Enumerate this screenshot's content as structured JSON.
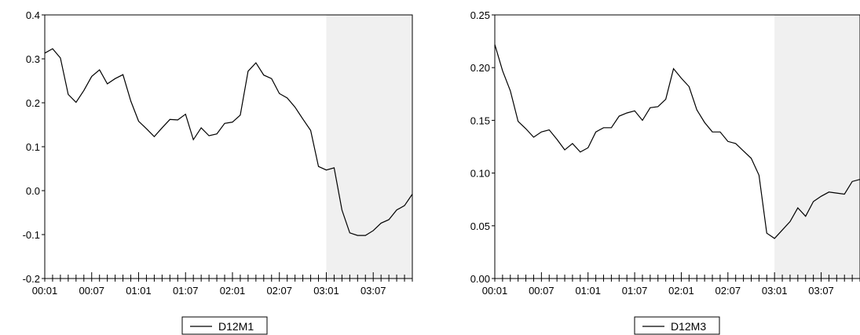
{
  "chart_data": [
    {
      "type": "line",
      "title": "",
      "xlabel": "",
      "ylabel": "",
      "ylim": [
        -0.2,
        0.4
      ],
      "yticks": [
        "-0.2",
        "-0.1",
        "0.0",
        "0.1",
        "0.2",
        "0.3",
        "0.4"
      ],
      "xtick_labels": [
        "00:01",
        "00:07",
        "01:01",
        "01:07",
        "02:01",
        "02:07",
        "03:01",
        "03:07"
      ],
      "shaded_region": {
        "from_index": 36,
        "to_index": 47,
        "color": "#f0f0f0"
      },
      "legend": {
        "position": "bottom-center"
      },
      "series": [
        {
          "name": "D12M1",
          "color": "#000000",
          "values": [
            0.313,
            0.323,
            0.302,
            0.219,
            0.201,
            0.228,
            0.26,
            0.275,
            0.243,
            0.255,
            0.264,
            0.204,
            0.158,
            0.141,
            0.123,
            0.143,
            0.162,
            0.161,
            0.174,
            0.116,
            0.143,
            0.125,
            0.129,
            0.153,
            0.156,
            0.172,
            0.272,
            0.291,
            0.263,
            0.255,
            0.221,
            0.211,
            0.19,
            0.163,
            0.137,
            0.055,
            0.047,
            0.052,
            -0.044,
            -0.096,
            -0.102,
            -0.102,
            -0.091,
            -0.074,
            -0.066,
            -0.044,
            -0.034,
            -0.008
          ]
        }
      ]
    },
    {
      "type": "line",
      "title": "",
      "xlabel": "",
      "ylabel": "",
      "ylim": [
        0.0,
        0.25
      ],
      "yticks": [
        "0.00",
        "0.05",
        "0.10",
        "0.15",
        "0.20",
        "0.25"
      ],
      "xtick_labels": [
        "00:01",
        "00:07",
        "01:01",
        "01:07",
        "02:01",
        "02:07",
        "03:01",
        "03:07"
      ],
      "shaded_region": {
        "from_index": 36,
        "to_index": 47,
        "color": "#f0f0f0"
      },
      "legend": {
        "position": "bottom-center"
      },
      "series": [
        {
          "name": "D12M3",
          "color": "#000000",
          "values": [
            0.222,
            0.197,
            0.178,
            0.149,
            0.142,
            0.134,
            0.139,
            0.141,
            0.132,
            0.122,
            0.128,
            0.12,
            0.124,
            0.139,
            0.143,
            0.143,
            0.154,
            0.157,
            0.159,
            0.15,
            0.162,
            0.163,
            0.17,
            0.199,
            0.19,
            0.182,
            0.16,
            0.148,
            0.139,
            0.139,
            0.13,
            0.128,
            0.121,
            0.114,
            0.098,
            0.043,
            0.038,
            0.046,
            0.054,
            0.067,
            0.059,
            0.073,
            0.078,
            0.082,
            0.081,
            0.08,
            0.092,
            0.094
          ]
        }
      ]
    }
  ]
}
